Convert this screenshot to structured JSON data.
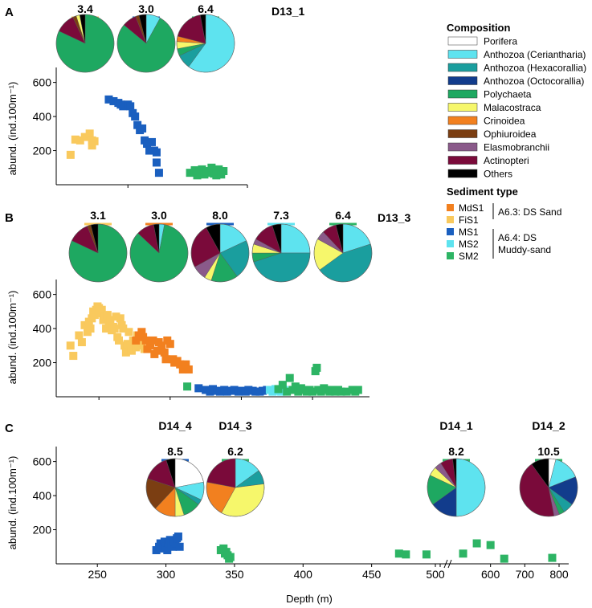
{
  "figure": {
    "legend": {
      "composition_title": "Composition",
      "sediment_title": "Sediment type",
      "group_A63": "A6.3: DS Sand",
      "group_A64_line1": "A6.4: DS",
      "group_A64_line2": "Muddy-sand"
    }
  },
  "chart_data": [
    {
      "panel": "A",
      "type": "scatter",
      "site": "D13_1",
      "ylabel": "abund. (ind.100m⁻¹)",
      "ylim": [
        0,
        650
      ],
      "yticks": [
        200,
        400,
        600
      ],
      "x_domain": [
        220,
        300
      ],
      "series": [
        {
          "name": "FiS1",
          "color": "#F9C95D",
          "x": [
            226,
            228,
            230,
            232,
            234,
            235,
            236,
            235
          ],
          "y": [
            175,
            265,
            260,
            280,
            300,
            260,
            255,
            230
          ]
        },
        {
          "name": "MS1",
          "color": "#1A5FBF",
          "x": [
            242,
            244,
            246,
            247,
            248,
            249,
            250,
            251,
            252,
            253,
            254,
            255,
            256,
            257,
            258,
            259,
            260,
            261,
            262,
            262,
            263
          ],
          "y": [
            500,
            490,
            480,
            470,
            460,
            465,
            470,
            460,
            420,
            400,
            350,
            320,
            330,
            260,
            240,
            200,
            250,
            200,
            190,
            130,
            70
          ]
        },
        {
          "name": "SM2",
          "color": "#2DB464",
          "x": [
            276,
            278,
            279,
            280,
            281,
            282,
            283,
            284,
            285,
            286,
            287,
            288,
            289,
            290
          ],
          "y": [
            70,
            85,
            55,
            75,
            90,
            60,
            80,
            70,
            100,
            65,
            55,
            90,
            60,
            80
          ]
        }
      ],
      "pies": [
        {
          "label": "3.4",
          "color": "#F9C95D",
          "slices": [
            {
              "name": "Polychaeta",
              "value": 82
            },
            {
              "name": "Actinopteri",
              "value": 11
            },
            {
              "name": "Ophiuroidea",
              "value": 2
            },
            {
              "name": "Malacostraca",
              "value": 2
            },
            {
              "name": "Others",
              "value": 3
            }
          ]
        },
        {
          "label": "3.0",
          "color": "#1A5FBF",
          "slices": [
            {
              "name": "Anthozoa (Ceriantharia)",
              "value": 8
            },
            {
              "name": "Polychaeta",
              "value": 78
            },
            {
              "name": "Actinopteri",
              "value": 8
            },
            {
              "name": "Ophiuroidea",
              "value": 2
            },
            {
              "name": "Others",
              "value": 4
            }
          ]
        },
        {
          "label": "6.4",
          "color": "#2DB464",
          "slices": [
            {
              "name": "Anthozoa (Ceriantharia)",
              "value": 60
            },
            {
              "name": "Anthozoa (Hexacorallia)",
              "value": 8
            },
            {
              "name": "Polychaeta",
              "value": 4
            },
            {
              "name": "Malacostraca",
              "value": 4
            },
            {
              "name": "Crinoidea",
              "value": 3
            },
            {
              "name": "Actinopteri",
              "value": 18
            },
            {
              "name": "Others",
              "value": 3
            }
          ]
        }
      ]
    },
    {
      "panel": "B",
      "type": "scatter",
      "site": "D13_3",
      "ylabel": "abund. (ind.100m⁻¹)",
      "ylim": [
        0,
        650
      ],
      "yticks": [
        200,
        400,
        600
      ],
      "x_domain": [
        220,
        440
      ],
      "series": [
        {
          "name": "FiS1",
          "color": "#F9C95D",
          "x": [
            230,
            232,
            236,
            238,
            240,
            242,
            243,
            244,
            245,
            246,
            247,
            248,
            249,
            250,
            251,
            252,
            253,
            254,
            255,
            256,
            257,
            258,
            259,
            260,
            261,
            262,
            263,
            264,
            265,
            266,
            267,
            268,
            269,
            270,
            271,
            272,
            273,
            274,
            275,
            276,
            277,
            278,
            280,
            282
          ],
          "y": [
            300,
            240,
            360,
            320,
            420,
            380,
            440,
            400,
            460,
            500,
            480,
            510,
            530,
            520,
            490,
            510,
            450,
            470,
            400,
            480,
            430,
            450,
            390,
            410,
            400,
            470,
            350,
            330,
            460,
            420,
            400,
            300,
            260,
            310,
            380,
            300,
            270,
            330,
            310,
            290,
            360,
            300,
            320,
            280
          ]
        },
        {
          "name": "MdS1",
          "color": "#F2801F",
          "x": [
            276,
            278,
            280,
            281,
            283,
            284,
            286,
            288,
            289,
            291,
            292,
            294,
            296,
            297,
            298,
            300,
            302,
            303,
            305,
            307,
            309,
            311,
            313
          ],
          "y": [
            330,
            360,
            380,
            350,
            330,
            280,
            300,
            330,
            250,
            270,
            320,
            300,
            260,
            220,
            330,
            310,
            220,
            200,
            210,
            190,
            160,
            190,
            160
          ]
        },
        {
          "name": "MS1",
          "color": "#1A5FBF",
          "x": [
            320,
            325,
            328,
            330,
            333,
            335,
            338,
            340,
            343,
            345,
            348,
            350,
            353,
            355,
            358,
            360,
            363,
            365,
            368
          ],
          "y": [
            50,
            40,
            30,
            45,
            35,
            30,
            40,
            30,
            35,
            40,
            30,
            35,
            30,
            40,
            35,
            30,
            30,
            35,
            40
          ]
        },
        {
          "name": "MS2",
          "color": "#5EE3EF",
          "x": [
            370,
            372,
            374,
            376,
            378,
            380
          ],
          "y": [
            40,
            30,
            45,
            35,
            30,
            40
          ]
        },
        {
          "name": "SM2",
          "color": "#2DB464",
          "x": [
            312,
            376,
            379,
            382,
            384,
            386,
            388,
            390,
            392,
            394,
            396,
            398,
            400,
            402,
            403,
            404,
            406,
            408,
            410,
            412,
            414,
            416,
            418,
            420,
            424,
            428,
            430,
            432
          ],
          "y": [
            60,
            45,
            70,
            30,
            110,
            40,
            60,
            30,
            50,
            40,
            30,
            40,
            30,
            150,
            170,
            40,
            30,
            50,
            40,
            30,
            40,
            30,
            40,
            30,
            30,
            40,
            30,
            40
          ]
        }
      ],
      "pies": [
        {
          "label": "3.1",
          "color": "#F9C95D",
          "slices": [
            {
              "name": "Polychaeta",
              "value": 82
            },
            {
              "name": "Actinopteri",
              "value": 12
            },
            {
              "name": "Ophiuroidea",
              "value": 2
            },
            {
              "name": "Others",
              "value": 4
            }
          ]
        },
        {
          "label": "3.0",
          "color": "#F2801F",
          "slices": [
            {
              "name": "Anthozoa (Ceriantharia)",
              "value": 3
            },
            {
              "name": "Polychaeta",
              "value": 84
            },
            {
              "name": "Actinopteri",
              "value": 10
            },
            {
              "name": "Others",
              "value": 3
            }
          ]
        },
        {
          "label": "8.0",
          "color": "#1A5FBF",
          "slices": [
            {
              "name": "Anthozoa (Ceriantharia)",
              "value": 18
            },
            {
              "name": "Anthozoa (Hexacorallia)",
              "value": 22
            },
            {
              "name": "Polychaeta",
              "value": 15
            },
            {
              "name": "Malacostraca",
              "value": 4
            },
            {
              "name": "Elasmobranchii",
              "value": 8
            },
            {
              "name": "Actinopteri",
              "value": 25
            },
            {
              "name": "Others",
              "value": 8
            }
          ]
        },
        {
          "label": "7.3",
          "color": "#5EE3EF",
          "slices": [
            {
              "name": "Anthozoa (Ceriantharia)",
              "value": 25
            },
            {
              "name": "Anthozoa (Hexacorallia)",
              "value": 45
            },
            {
              "name": "Polychaeta",
              "value": 5
            },
            {
              "name": "Malacostraca",
              "value": 5
            },
            {
              "name": "Elasmobranchii",
              "value": 3
            },
            {
              "name": "Actinopteri",
              "value": 12
            },
            {
              "name": "Others",
              "value": 5
            }
          ]
        },
        {
          "label": "6.4",
          "color": "#2DB464",
          "slices": [
            {
              "name": "Anthozoa (Ceriantharia)",
              "value": 20
            },
            {
              "name": "Anthozoa (Hexacorallia)",
              "value": 45
            },
            {
              "name": "Malacostraca",
              "value": 18
            },
            {
              "name": "Elasmobranchii",
              "value": 5
            },
            {
              "name": "Actinopteri",
              "value": 8
            },
            {
              "name": "Others",
              "value": 4
            }
          ]
        }
      ]
    },
    {
      "panel": "C",
      "type": "scatter",
      "xlabel": "Depth (m)",
      "ylabel": "abund. (ind.100m⁻¹)",
      "ylim": [
        0,
        650
      ],
      "yticks": [
        200,
        400,
        600
      ],
      "x_domain": [
        220,
        500
      ],
      "x_broken": true,
      "x_ticks": [
        250,
        300,
        350,
        400,
        450,
        500
      ],
      "x_ticks_broken": [
        500,
        600,
        700,
        800
      ],
      "series": [
        {
          "name": "MS1",
          "color": "#1A5FBF",
          "x": [
            293,
            295,
            296,
            297,
            298,
            299,
            300,
            301,
            302,
            303,
            304,
            305,
            306,
            307,
            308,
            309,
            310
          ],
          "y": [
            80,
            100,
            120,
            90,
            110,
            130,
            100,
            80,
            120,
            140,
            110,
            100,
            130,
            120,
            150,
            160,
            100
          ]
        },
        {
          "name": "SM2",
          "color": "#2DB464",
          "x": [
            340,
            342,
            343,
            344,
            345,
            346,
            347,
            470,
            475,
            490,
            520,
            560,
            600,
            640,
            780
          ],
          "y": [
            80,
            90,
            60,
            70,
            50,
            30,
            40,
            60,
            55,
            55,
            60,
            120,
            110,
            30,
            35
          ]
        }
      ],
      "pies": [
        {
          "site": "D14_4",
          "label": "8.5",
          "color": "#1A5FBF",
          "slices": [
            {
              "name": "Porifera",
              "value": 22
            },
            {
              "name": "Anthozoa (Ceriantharia)",
              "value": 10
            },
            {
              "name": "Anthozoa (Hexacorallia)",
              "value": 3
            },
            {
              "name": "Polychaeta",
              "value": 10
            },
            {
              "name": "Malacostraca",
              "value": 5
            },
            {
              "name": "Crinoidea",
              "value": 12
            },
            {
              "name": "Ophiuroidea",
              "value": 18
            },
            {
              "name": "Actinopteri",
              "value": 15
            },
            {
              "name": "Others",
              "value": 5
            }
          ]
        },
        {
          "site": "D14_3",
          "label": "6.2",
          "color": "#2DB464",
          "slices": [
            {
              "name": "Anthozoa (Ceriantharia)",
              "value": 15
            },
            {
              "name": "Anthozoa (Hexacorallia)",
              "value": 8
            },
            {
              "name": "Malacostraca",
              "value": 35
            },
            {
              "name": "Crinoidea",
              "value": 20
            },
            {
              "name": "Actinopteri",
              "value": 22
            }
          ]
        },
        {
          "site": "D14_1",
          "label": "8.2",
          "color": "#2DB464",
          "slices": [
            {
              "name": "Anthozoa (Ceriantharia)",
              "value": 50
            },
            {
              "name": "Anthozoa (Octocorallia)",
              "value": 15
            },
            {
              "name": "Polychaeta",
              "value": 17
            },
            {
              "name": "Malacostraca",
              "value": 5
            },
            {
              "name": "Elasmobranchii",
              "value": 4
            },
            {
              "name": "Actinopteri",
              "value": 7
            },
            {
              "name": "Others",
              "value": 2
            }
          ]
        },
        {
          "site": "D14_2",
          "label": "10.5",
          "color": "#2DB464",
          "slices": [
            {
              "name": "Porifera",
              "value": 4
            },
            {
              "name": "Anthozoa (Ceriantharia)",
              "value": 15
            },
            {
              "name": "Anthozoa (Octocorallia)",
              "value": 16
            },
            {
              "name": "Anthozoa (Hexacorallia)",
              "value": 6
            },
            {
              "name": "Polychaeta",
              "value": 3
            },
            {
              "name": "Elasmobranchii",
              "value": 3
            },
            {
              "name": "Actinopteri",
              "value": 43
            },
            {
              "name": "Others",
              "value": 10
            }
          ]
        }
      ]
    }
  ],
  "composition_legend": [
    {
      "name": "Porifera",
      "color": "#FFFFFF"
    },
    {
      "name": "Anthozoa (Ceriantharia)",
      "color": "#5EE3EF"
    },
    {
      "name": "Anthozoa (Hexacorallia)",
      "color": "#1A9E9E"
    },
    {
      "name": "Anthozoa (Octocorallia)",
      "color": "#123C8C"
    },
    {
      "name": "Polychaeta",
      "color": "#1EA861"
    },
    {
      "name": "Malacostraca",
      "color": "#F6F76B"
    },
    {
      "name": "Crinoidea",
      "color": "#F2801F"
    },
    {
      "name": "Ophiuroidea",
      "color": "#7B3E12"
    },
    {
      "name": "Elasmobranchii",
      "color": "#8A5A8A"
    },
    {
      "name": "Actinopteri",
      "color": "#7A0A3A"
    },
    {
      "name": "Others",
      "color": "#000000"
    }
  ],
  "sediment_legend": [
    {
      "name": "MdS1",
      "color": "#F2801F"
    },
    {
      "name": "FiS1",
      "color": "#F9C95D"
    },
    {
      "name": "MS1",
      "color": "#1A5FBF"
    },
    {
      "name": "MS2",
      "color": "#5EE3EF"
    },
    {
      "name": "SM2",
      "color": "#2DB464"
    }
  ]
}
